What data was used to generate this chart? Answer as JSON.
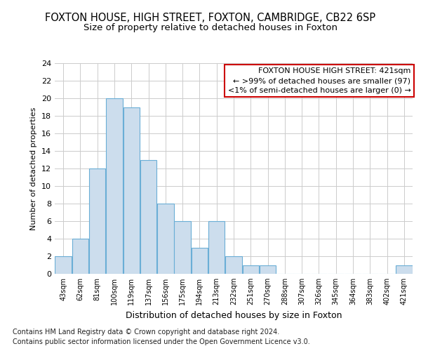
{
  "title1": "FOXTON HOUSE, HIGH STREET, FOXTON, CAMBRIDGE, CB22 6SP",
  "title2": "Size of property relative to detached houses in Foxton",
  "xlabel": "Distribution of detached houses by size in Foxton",
  "ylabel": "Number of detached properties",
  "footer1": "Contains HM Land Registry data © Crown copyright and database right 2024.",
  "footer2": "Contains public sector information licensed under the Open Government Licence v3.0.",
  "bins": [
    "43sqm",
    "62sqm",
    "81sqm",
    "100sqm",
    "119sqm",
    "137sqm",
    "156sqm",
    "175sqm",
    "194sqm",
    "213sqm",
    "232sqm",
    "251sqm",
    "270sqm",
    "288sqm",
    "307sqm",
    "326sqm",
    "345sqm",
    "364sqm",
    "383sqm",
    "402sqm",
    "421sqm"
  ],
  "values": [
    2,
    4,
    12,
    20,
    19,
    13,
    8,
    6,
    3,
    6,
    2,
    1,
    1,
    0,
    0,
    0,
    0,
    0,
    0,
    0,
    1
  ],
  "bar_color": "#ccdded",
  "bar_edge_color": "#6aaed6",
  "ylim": [
    0,
    24
  ],
  "yticks": [
    0,
    2,
    4,
    6,
    8,
    10,
    12,
    14,
    16,
    18,
    20,
    22,
    24
  ],
  "grid_color": "#cccccc",
  "annotation_title": "FOXTON HOUSE HIGH STREET: 421sqm",
  "annotation_line1": "← >99% of detached houses are smaller (97)",
  "annotation_line2": "<1% of semi-detached houses are larger (0) →",
  "annotation_box_color": "#ffffff",
  "annotation_box_edge_color": "#cc0000",
  "title1_fontsize": 10.5,
  "title2_fontsize": 9.5,
  "xlabel_fontsize": 9,
  "ylabel_fontsize": 8,
  "tick_fontsize": 8,
  "annotation_fontsize": 8,
  "footer_fontsize": 7,
  "background_color": "#ffffff"
}
